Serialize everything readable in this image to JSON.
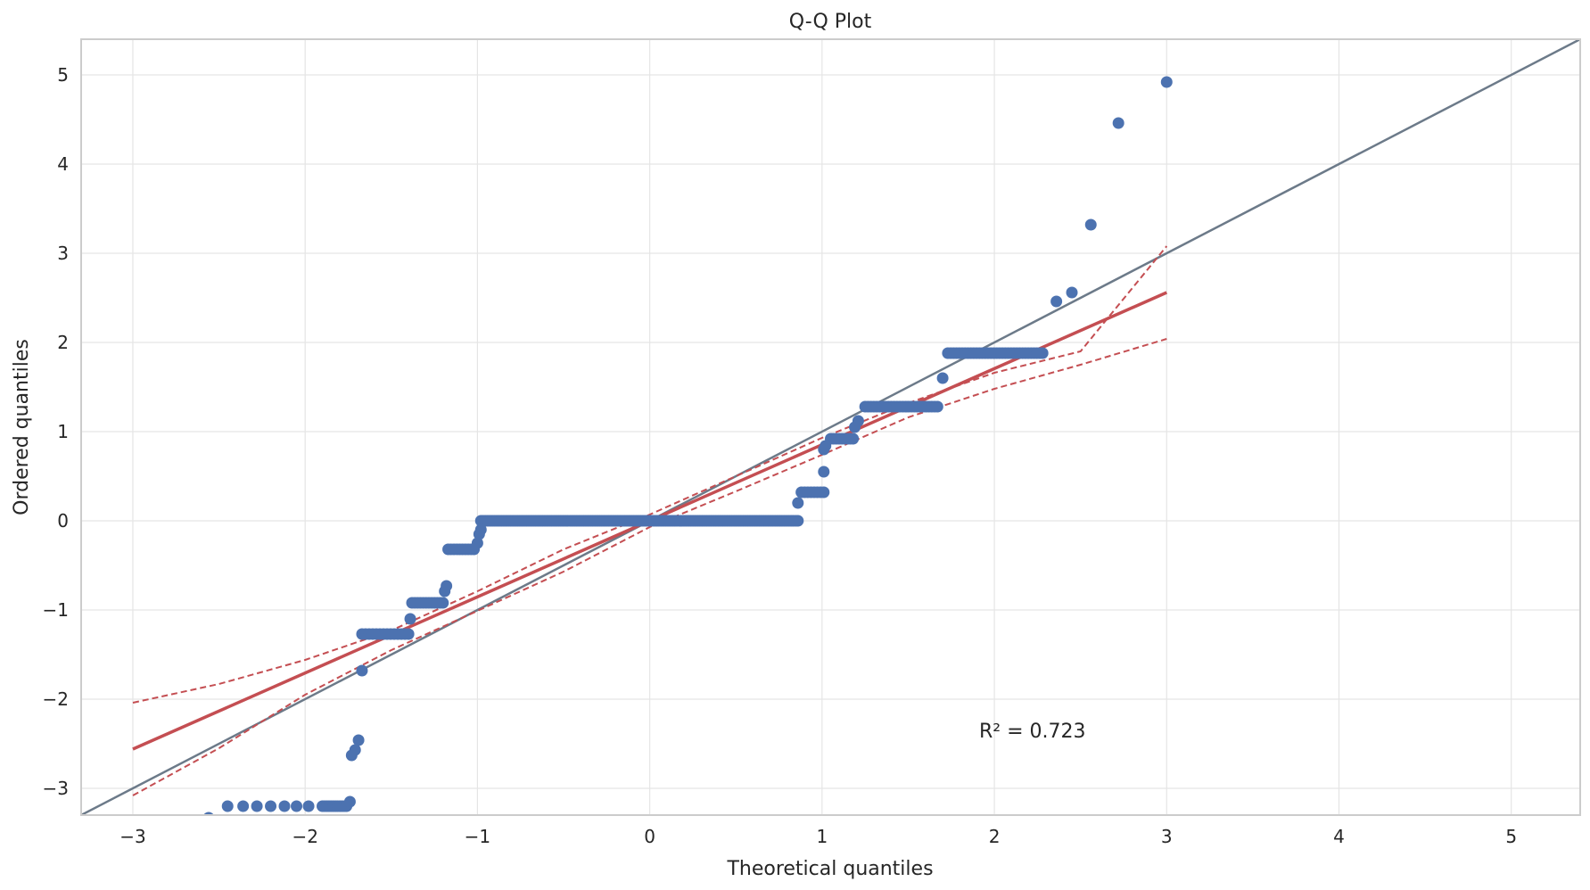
{
  "chart_data": {
    "type": "scatter",
    "title": "Q-Q Plot",
    "xlabel": "Theoretical quantiles",
    "ylabel": "Ordered quantiles",
    "xlim": [
      -3.3,
      5.4
    ],
    "ylim": [
      -3.3,
      5.4
    ],
    "xticks": [
      -3,
      -2,
      -1,
      0,
      1,
      2,
      3,
      4,
      5
    ],
    "yticks": [
      -3,
      -2,
      -1,
      0,
      1,
      2,
      3,
      4,
      5
    ],
    "xtick_labels": [
      "−3",
      "−2",
      "−1",
      "0",
      "1",
      "2",
      "3",
      "4",
      "5"
    ],
    "ytick_labels": [
      "−3",
      "−2",
      "−1",
      "0",
      "1",
      "2",
      "3",
      "4",
      "5"
    ],
    "grid": true,
    "annotation": "R² = 0.723",
    "colors": {
      "points": "#4c72b0",
      "fit_line": "#c44e52",
      "reference_line": "#6c7a89",
      "grid": "#e5e5e5",
      "spine": "#cccccc"
    },
    "reference_line": {
      "slope": 1,
      "intercept": 0
    },
    "fit_line": {
      "x": [
        -3.0,
        3.0
      ],
      "y": [
        -2.56,
        2.56
      ]
    },
    "confidence_band": {
      "x": [
        -3.0,
        -2.5,
        -2.0,
        -1.5,
        -1.0,
        -0.5,
        0.0,
        0.5,
        1.0,
        1.5,
        2.0,
        2.5,
        3.0
      ],
      "upper": [
        -2.04,
        -1.83,
        -1.56,
        -1.23,
        -0.79,
        -0.32,
        0.07,
        0.5,
        0.93,
        1.32,
        1.66,
        1.9,
        3.08
      ],
      "lower": [
        -3.08,
        -2.55,
        -1.95,
        -1.45,
        -1.01,
        -0.57,
        -0.07,
        0.33,
        0.74,
        1.16,
        1.48,
        1.75,
        2.04
      ]
    },
    "series": [
      {
        "segments": [
          {
            "x_from": -1.9,
            "x_to": -1.76,
            "count": 12,
            "y": -3.2
          },
          {
            "x_from": -1.67,
            "x_to": -1.4,
            "count": 14,
            "y": -1.27
          },
          {
            "x_from": -1.38,
            "x_to": -1.2,
            "count": 12,
            "y": -0.92
          },
          {
            "x_from": -1.17,
            "x_to": -1.02,
            "count": 10,
            "y": -0.32
          },
          {
            "x_from": -0.98,
            "x_to": 0.86,
            "count": 140,
            "y": 0.0
          },
          {
            "x_from": 0.88,
            "x_to": 1.01,
            "count": 8,
            "y": 0.32
          },
          {
            "x_from": 1.05,
            "x_to": 1.18,
            "count": 9,
            "y": 0.92
          },
          {
            "x_from": 1.25,
            "x_to": 1.67,
            "count": 26,
            "y": 1.28
          },
          {
            "x_from": 1.73,
            "x_to": 2.28,
            "count": 34,
            "y": 1.88
          }
        ],
        "points": [
          {
            "x": -2.56,
            "y": -3.33
          },
          {
            "x": -2.45,
            "y": -3.2
          },
          {
            "x": -2.36,
            "y": -3.2
          },
          {
            "x": -2.28,
            "y": -3.2
          },
          {
            "x": -2.2,
            "y": -3.2
          },
          {
            "x": -2.12,
            "y": -3.2
          },
          {
            "x": -2.05,
            "y": -3.2
          },
          {
            "x": -1.98,
            "y": -3.2
          },
          {
            "x": -1.74,
            "y": -3.15
          },
          {
            "x": -1.73,
            "y": -2.63
          },
          {
            "x": -1.71,
            "y": -2.57
          },
          {
            "x": -1.69,
            "y": -2.46
          },
          {
            "x": -1.67,
            "y": -1.68
          },
          {
            "x": -1.39,
            "y": -1.1
          },
          {
            "x": -1.19,
            "y": -0.79
          },
          {
            "x": -1.18,
            "y": -0.73
          },
          {
            "x": -1.0,
            "y": -0.25
          },
          {
            "x": -0.99,
            "y": -0.15
          },
          {
            "x": -0.98,
            "y": -0.1
          },
          {
            "x": 0.86,
            "y": 0.2
          },
          {
            "x": 1.01,
            "y": 0.55
          },
          {
            "x": 1.01,
            "y": 0.8
          },
          {
            "x": 1.02,
            "y": 0.84
          },
          {
            "x": 1.19,
            "y": 1.05
          },
          {
            "x": 1.21,
            "y": 1.12
          },
          {
            "x": 1.7,
            "y": 1.6
          },
          {
            "x": 2.36,
            "y": 2.46
          },
          {
            "x": 2.45,
            "y": 2.56
          },
          {
            "x": 2.56,
            "y": 3.32
          },
          {
            "x": 2.72,
            "y": 4.46
          },
          {
            "x": 3.0,
            "y": 4.92
          }
        ]
      }
    ]
  }
}
